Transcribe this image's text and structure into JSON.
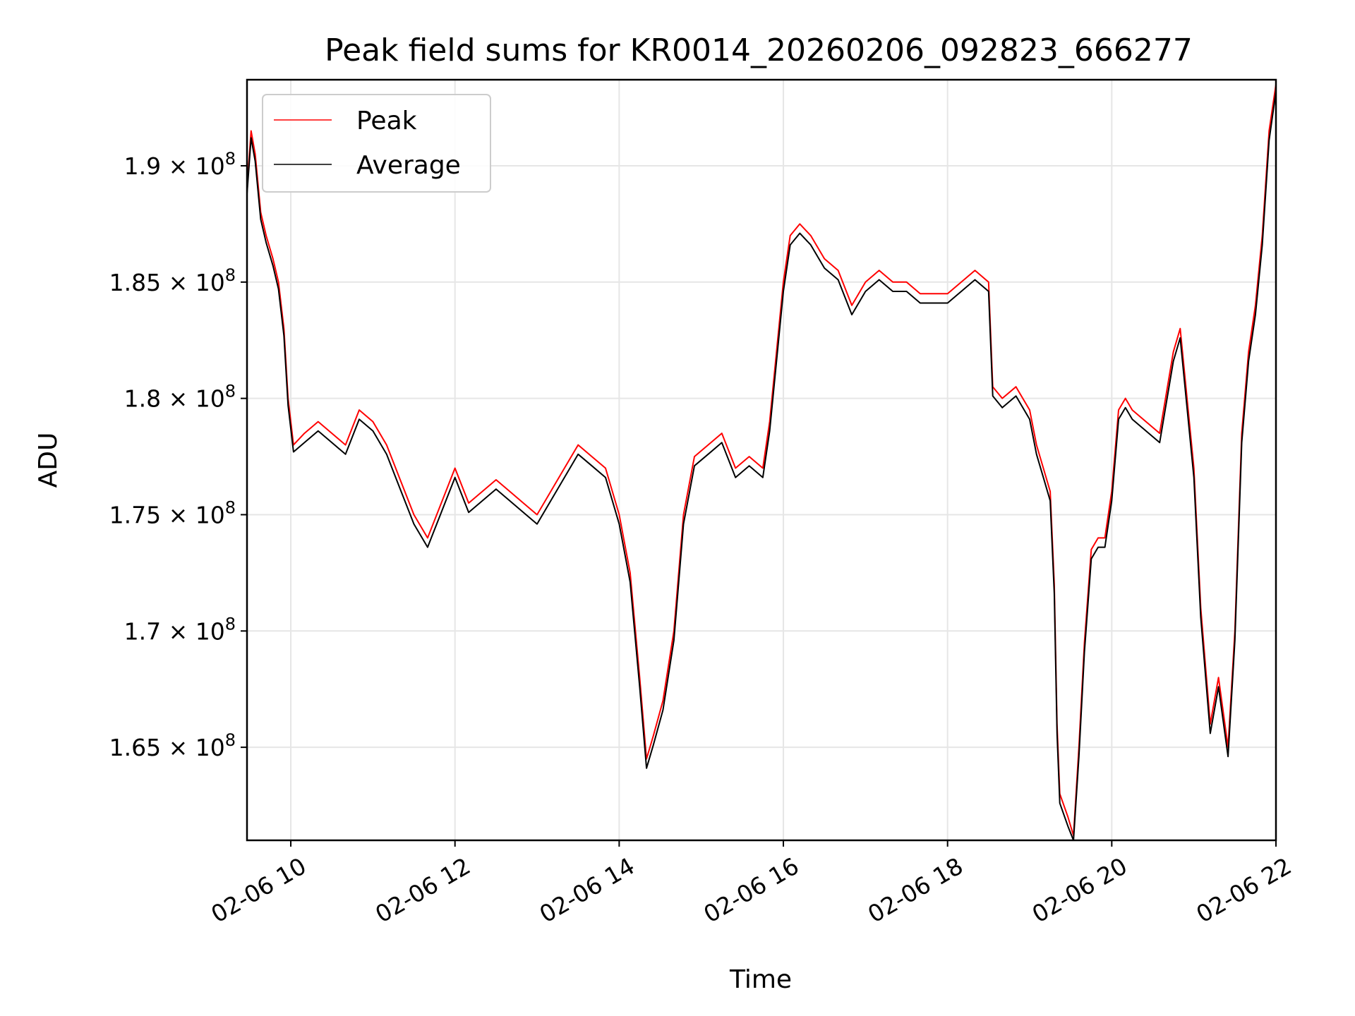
{
  "chart_data": {
    "type": "line",
    "title": "Peak field sums for KR0014_20260206_092823_666277",
    "xlabel": "Time",
    "ylabel": "ADU",
    "x_range": [
      "2026-02-06T09:28:00",
      "2026-02-06T22:00:00"
    ],
    "ylim": [
      161000000,
      193700000
    ],
    "grid": true,
    "legend": "upper-left",
    "x_ticks": [
      {
        "time": "2026-02-06T10:00:00",
        "label": "02-06 10"
      },
      {
        "time": "2026-02-06T12:00:00",
        "label": "02-06 12"
      },
      {
        "time": "2026-02-06T14:00:00",
        "label": "02-06 14"
      },
      {
        "time": "2026-02-06T16:00:00",
        "label": "02-06 16"
      },
      {
        "time": "2026-02-06T18:00:00",
        "label": "02-06 18"
      },
      {
        "time": "2026-02-06T20:00:00",
        "label": "02-06 20"
      },
      {
        "time": "2026-02-06T22:00:00",
        "label": "02-06 22"
      }
    ],
    "y_ticks": [
      {
        "value": 165000000,
        "mantissa": "1.65",
        "base": "10",
        "exponent": "8"
      },
      {
        "value": 170000000,
        "mantissa": "1.7",
        "base": "10",
        "exponent": "8"
      },
      {
        "value": 175000000,
        "mantissa": "1.75",
        "base": "10",
        "exponent": "8"
      },
      {
        "value": 180000000,
        "mantissa": "1.8",
        "base": "10",
        "exponent": "8"
      },
      {
        "value": 185000000,
        "mantissa": "1.85",
        "base": "10",
        "exponent": "8"
      },
      {
        "value": 190000000,
        "mantissa": "1.9",
        "base": "10",
        "exponent": "8"
      }
    ],
    "series": [
      {
        "name": "Peak",
        "color": "#ff0000",
        "points": [
          [
            "2026-02-06T09:28:00",
            189000000
          ],
          [
            "2026-02-06T09:31:00",
            191500000
          ],
          [
            "2026-02-06T09:34:00",
            190500000
          ],
          [
            "2026-02-06T09:38:00",
            188000000
          ],
          [
            "2026-02-06T09:42:00",
            187000000
          ],
          [
            "2026-02-06T09:47:00",
            186000000
          ],
          [
            "2026-02-06T09:51:00",
            185000000
          ],
          [
            "2026-02-06T09:55:00",
            183000000
          ],
          [
            "2026-02-06T09:58:00",
            180000000
          ],
          [
            "2026-02-06T10:02:00",
            178000000
          ],
          [
            "2026-02-06T10:10:00",
            178500000
          ],
          [
            "2026-02-06T10:20:00",
            179000000
          ],
          [
            "2026-02-06T10:30:00",
            178500000
          ],
          [
            "2026-02-06T10:40:00",
            178000000
          ],
          [
            "2026-02-06T10:50:00",
            179500000
          ],
          [
            "2026-02-06T11:00:00",
            179000000
          ],
          [
            "2026-02-06T11:10:00",
            178000000
          ],
          [
            "2026-02-06T11:20:00",
            176500000
          ],
          [
            "2026-02-06T11:30:00",
            175000000
          ],
          [
            "2026-02-06T11:40:00",
            174000000
          ],
          [
            "2026-02-06T11:50:00",
            175500000
          ],
          [
            "2026-02-06T12:00:00",
            177000000
          ],
          [
            "2026-02-06T12:10:00",
            175500000
          ],
          [
            "2026-02-06T12:20:00",
            176000000
          ],
          [
            "2026-02-06T12:30:00",
            176500000
          ],
          [
            "2026-02-06T12:40:00",
            176000000
          ],
          [
            "2026-02-06T12:50:00",
            175500000
          ],
          [
            "2026-02-06T13:00:00",
            175000000
          ],
          [
            "2026-02-06T13:10:00",
            176000000
          ],
          [
            "2026-02-06T13:20:00",
            177000000
          ],
          [
            "2026-02-06T13:30:00",
            178000000
          ],
          [
            "2026-02-06T13:40:00",
            177500000
          ],
          [
            "2026-02-06T13:50:00",
            177000000
          ],
          [
            "2026-02-06T14:00:00",
            175000000
          ],
          [
            "2026-02-06T14:08:00",
            172500000
          ],
          [
            "2026-02-06T14:15:00",
            168000000
          ],
          [
            "2026-02-06T14:20:00",
            164500000
          ],
          [
            "2026-02-06T14:25:00",
            165500000
          ],
          [
            "2026-02-06T14:32:00",
            167000000
          ],
          [
            "2026-02-06T14:40:00",
            170000000
          ],
          [
            "2026-02-06T14:47:00",
            175000000
          ],
          [
            "2026-02-06T14:55:00",
            177500000
          ],
          [
            "2026-02-06T15:05:00",
            178000000
          ],
          [
            "2026-02-06T15:15:00",
            178500000
          ],
          [
            "2026-02-06T15:25:00",
            177000000
          ],
          [
            "2026-02-06T15:35:00",
            177500000
          ],
          [
            "2026-02-06T15:45:00",
            177000000
          ],
          [
            "2026-02-06T15:50:00",
            179000000
          ],
          [
            "2026-02-06T15:55:00",
            182000000
          ],
          [
            "2026-02-06T16:00:00",
            185000000
          ],
          [
            "2026-02-06T16:05:00",
            187000000
          ],
          [
            "2026-02-06T16:12:00",
            187500000
          ],
          [
            "2026-02-06T16:20:00",
            187000000
          ],
          [
            "2026-02-06T16:30:00",
            186000000
          ],
          [
            "2026-02-06T16:40:00",
            185500000
          ],
          [
            "2026-02-06T16:50:00",
            184000000
          ],
          [
            "2026-02-06T17:00:00",
            185000000
          ],
          [
            "2026-02-06T17:10:00",
            185500000
          ],
          [
            "2026-02-06T17:20:00",
            185000000
          ],
          [
            "2026-02-06T17:30:00",
            185000000
          ],
          [
            "2026-02-06T17:40:00",
            184500000
          ],
          [
            "2026-02-06T17:50:00",
            184500000
          ],
          [
            "2026-02-06T18:00:00",
            184500000
          ],
          [
            "2026-02-06T18:10:00",
            185000000
          ],
          [
            "2026-02-06T18:20:00",
            185500000
          ],
          [
            "2026-02-06T18:30:00",
            185000000
          ],
          [
            "2026-02-06T18:33:00",
            180500000
          ],
          [
            "2026-02-06T18:40:00",
            180000000
          ],
          [
            "2026-02-06T18:50:00",
            180500000
          ],
          [
            "2026-02-06T19:00:00",
            179500000
          ],
          [
            "2026-02-06T19:05:00",
            178000000
          ],
          [
            "2026-02-06T19:10:00",
            177000000
          ],
          [
            "2026-02-06T19:15:00",
            176000000
          ],
          [
            "2026-02-06T19:18:00",
            172000000
          ],
          [
            "2026-02-06T19:20:00",
            166000000
          ],
          [
            "2026-02-06T19:22:00",
            163000000
          ],
          [
            "2026-02-06T19:28:00",
            162000000
          ],
          [
            "2026-02-06T19:32:00",
            161200000
          ],
          [
            "2026-02-06T19:36:00",
            165000000
          ],
          [
            "2026-02-06T19:40:00",
            169500000
          ],
          [
            "2026-02-06T19:45:00",
            173500000
          ],
          [
            "2026-02-06T19:50:00",
            174000000
          ],
          [
            "2026-02-06T19:55:00",
            174000000
          ],
          [
            "2026-02-06T20:00:00",
            176000000
          ],
          [
            "2026-02-06T20:05:00",
            179500000
          ],
          [
            "2026-02-06T20:10:00",
            180000000
          ],
          [
            "2026-02-06T20:15:00",
            179500000
          ],
          [
            "2026-02-06T20:25:00",
            179000000
          ],
          [
            "2026-02-06T20:35:00",
            178500000
          ],
          [
            "2026-02-06T20:45:00",
            182000000
          ],
          [
            "2026-02-06T20:50:00",
            183000000
          ],
          [
            "2026-02-06T20:55:00",
            180000000
          ],
          [
            "2026-02-06T21:00:00",
            177000000
          ],
          [
            "2026-02-06T21:05:00",
            171000000
          ],
          [
            "2026-02-06T21:12:00",
            166000000
          ],
          [
            "2026-02-06T21:18:00",
            168000000
          ],
          [
            "2026-02-06T21:25:00",
            165000000
          ],
          [
            "2026-02-06T21:30:00",
            170000000
          ],
          [
            "2026-02-06T21:35:00",
            178500000
          ],
          [
            "2026-02-06T21:40:00",
            182000000
          ],
          [
            "2026-02-06T21:45:00",
            184000000
          ],
          [
            "2026-02-06T21:50:00",
            187000000
          ],
          [
            "2026-02-06T21:55:00",
            191500000
          ],
          [
            "2026-02-06T22:00:00",
            193500000
          ]
        ]
      },
      {
        "name": "Average",
        "color": "#000000",
        "points": [
          [
            "2026-02-06T09:28:00",
            188800000
          ],
          [
            "2026-02-06T09:31:00",
            191200000
          ],
          [
            "2026-02-06T09:34:00",
            190200000
          ],
          [
            "2026-02-06T09:38:00",
            187700000
          ],
          [
            "2026-02-06T09:42:00",
            186700000
          ],
          [
            "2026-02-06T09:47:00",
            185700000
          ],
          [
            "2026-02-06T09:51:00",
            184700000
          ],
          [
            "2026-02-06T09:55:00",
            182700000
          ],
          [
            "2026-02-06T09:58:00",
            179700000
          ],
          [
            "2026-02-06T10:02:00",
            177700000
          ],
          [
            "2026-02-06T10:10:00",
            178100000
          ],
          [
            "2026-02-06T10:20:00",
            178600000
          ],
          [
            "2026-02-06T10:30:00",
            178100000
          ],
          [
            "2026-02-06T10:40:00",
            177600000
          ],
          [
            "2026-02-06T10:50:00",
            179100000
          ],
          [
            "2026-02-06T11:00:00",
            178600000
          ],
          [
            "2026-02-06T11:10:00",
            177600000
          ],
          [
            "2026-02-06T11:20:00",
            176100000
          ],
          [
            "2026-02-06T11:30:00",
            174600000
          ],
          [
            "2026-02-06T11:40:00",
            173600000
          ],
          [
            "2026-02-06T11:50:00",
            175100000
          ],
          [
            "2026-02-06T12:00:00",
            176600000
          ],
          [
            "2026-02-06T12:10:00",
            175100000
          ],
          [
            "2026-02-06T12:20:00",
            175600000
          ],
          [
            "2026-02-06T12:30:00",
            176100000
          ],
          [
            "2026-02-06T12:40:00",
            175600000
          ],
          [
            "2026-02-06T12:50:00",
            175100000
          ],
          [
            "2026-02-06T13:00:00",
            174600000
          ],
          [
            "2026-02-06T13:10:00",
            175600000
          ],
          [
            "2026-02-06T13:20:00",
            176600000
          ],
          [
            "2026-02-06T13:30:00",
            177600000
          ],
          [
            "2026-02-06T13:40:00",
            177100000
          ],
          [
            "2026-02-06T13:50:00",
            176600000
          ],
          [
            "2026-02-06T14:00:00",
            174600000
          ],
          [
            "2026-02-06T14:08:00",
            172100000
          ],
          [
            "2026-02-06T14:15:00",
            167600000
          ],
          [
            "2026-02-06T14:20:00",
            164100000
          ],
          [
            "2026-02-06T14:25:00",
            165100000
          ],
          [
            "2026-02-06T14:32:00",
            166600000
          ],
          [
            "2026-02-06T14:40:00",
            169600000
          ],
          [
            "2026-02-06T14:47:00",
            174600000
          ],
          [
            "2026-02-06T14:55:00",
            177100000
          ],
          [
            "2026-02-06T15:05:00",
            177600000
          ],
          [
            "2026-02-06T15:15:00",
            178100000
          ],
          [
            "2026-02-06T15:25:00",
            176600000
          ],
          [
            "2026-02-06T15:35:00",
            177100000
          ],
          [
            "2026-02-06T15:45:00",
            176600000
          ],
          [
            "2026-02-06T15:50:00",
            178600000
          ],
          [
            "2026-02-06T15:55:00",
            181600000
          ],
          [
            "2026-02-06T16:00:00",
            184600000
          ],
          [
            "2026-02-06T16:05:00",
            186600000
          ],
          [
            "2026-02-06T16:12:00",
            187100000
          ],
          [
            "2026-02-06T16:20:00",
            186600000
          ],
          [
            "2026-02-06T16:30:00",
            185600000
          ],
          [
            "2026-02-06T16:40:00",
            185100000
          ],
          [
            "2026-02-06T16:50:00",
            183600000
          ],
          [
            "2026-02-06T17:00:00",
            184600000
          ],
          [
            "2026-02-06T17:10:00",
            185100000
          ],
          [
            "2026-02-06T17:20:00",
            184600000
          ],
          [
            "2026-02-06T17:30:00",
            184600000
          ],
          [
            "2026-02-06T17:40:00",
            184100000
          ],
          [
            "2026-02-06T17:50:00",
            184100000
          ],
          [
            "2026-02-06T18:00:00",
            184100000
          ],
          [
            "2026-02-06T18:10:00",
            184600000
          ],
          [
            "2026-02-06T18:20:00",
            185100000
          ],
          [
            "2026-02-06T18:30:00",
            184600000
          ],
          [
            "2026-02-06T18:33:00",
            180100000
          ],
          [
            "2026-02-06T18:40:00",
            179600000
          ],
          [
            "2026-02-06T18:50:00",
            180100000
          ],
          [
            "2026-02-06T19:00:00",
            179100000
          ],
          [
            "2026-02-06T19:05:00",
            177600000
          ],
          [
            "2026-02-06T19:10:00",
            176600000
          ],
          [
            "2026-02-06T19:15:00",
            175600000
          ],
          [
            "2026-02-06T19:18:00",
            171600000
          ],
          [
            "2026-02-06T19:20:00",
            165600000
          ],
          [
            "2026-02-06T19:22:00",
            162600000
          ],
          [
            "2026-02-06T19:28:00",
            161600000
          ],
          [
            "2026-02-06T19:32:00",
            161000000
          ],
          [
            "2026-02-06T19:36:00",
            164600000
          ],
          [
            "2026-02-06T19:40:00",
            169100000
          ],
          [
            "2026-02-06T19:45:00",
            173100000
          ],
          [
            "2026-02-06T19:50:00",
            173600000
          ],
          [
            "2026-02-06T19:55:00",
            173600000
          ],
          [
            "2026-02-06T20:00:00",
            175600000
          ],
          [
            "2026-02-06T20:05:00",
            179100000
          ],
          [
            "2026-02-06T20:10:00",
            179600000
          ],
          [
            "2026-02-06T20:15:00",
            179100000
          ],
          [
            "2026-02-06T20:25:00",
            178600000
          ],
          [
            "2026-02-06T20:35:00",
            178100000
          ],
          [
            "2026-02-06T20:45:00",
            181600000
          ],
          [
            "2026-02-06T20:50:00",
            182600000
          ],
          [
            "2026-02-06T20:55:00",
            179600000
          ],
          [
            "2026-02-06T21:00:00",
            176600000
          ],
          [
            "2026-02-06T21:05:00",
            170600000
          ],
          [
            "2026-02-06T21:12:00",
            165600000
          ],
          [
            "2026-02-06T21:18:00",
            167600000
          ],
          [
            "2026-02-06T21:25:00",
            164600000
          ],
          [
            "2026-02-06T21:30:00",
            169600000
          ],
          [
            "2026-02-06T21:35:00",
            178100000
          ],
          [
            "2026-02-06T21:40:00",
            181600000
          ],
          [
            "2026-02-06T21:45:00",
            183600000
          ],
          [
            "2026-02-06T21:50:00",
            186600000
          ],
          [
            "2026-02-06T21:55:00",
            191100000
          ],
          [
            "2026-02-06T22:00:00",
            193200000
          ]
        ]
      }
    ]
  }
}
